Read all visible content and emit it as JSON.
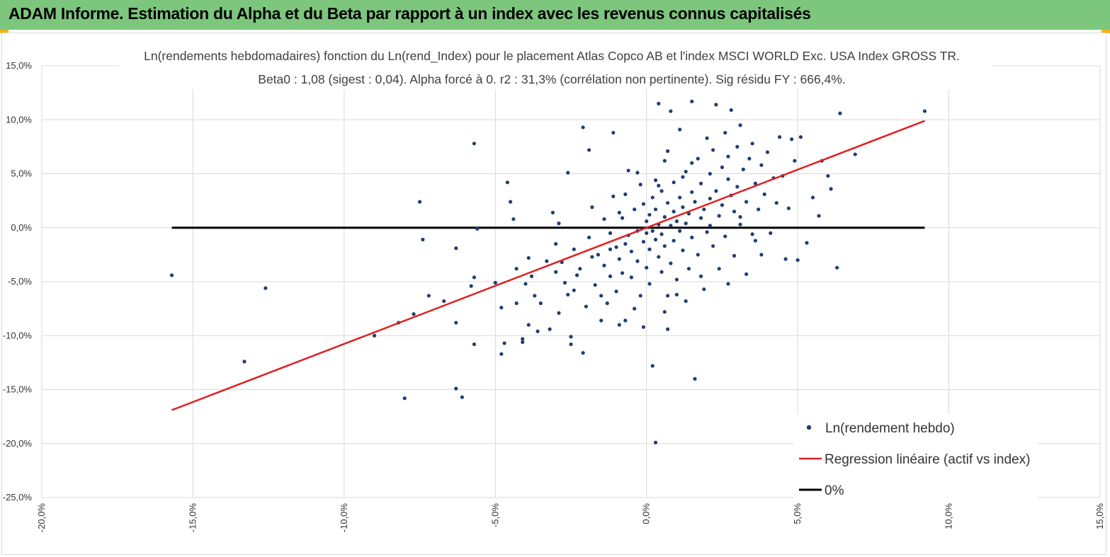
{
  "banner": {
    "title": "ADAM Informe. Estimation du Alpha et du Beta par rapport à un index avec les revenus connus capitalisés"
  },
  "colors": {
    "banner_bg": "#7dc67d",
    "accent_corner": "#f2b418",
    "points": "#1f3f73",
    "regression": "#e02020",
    "zero_line": "#000000",
    "grid": "#d9d9d9"
  },
  "chart_data": {
    "type": "scatter",
    "title_line1": "Ln(rendements hebdomadaires) fonction du Ln(rend_Index) pour le placement Atlas Copco AB et l'index MSCI WORLD Exc. USA Index GROSS TR.",
    "title_line2": "Beta0 : 1,08 (sigest : 0,04). Alpha forcé à 0. r2 : 31,3% (corrélation non pertinente). Sig résidu FY : 666,4%.",
    "xlabel": "",
    "ylabel": "",
    "xlim": [
      -0.2,
      0.15
    ],
    "ylim": [
      -0.25,
      0.15
    ],
    "x_ticks": [
      "-20,0%",
      "-15,0%",
      "-10,0%",
      "-5,0%",
      "0,0%",
      "5,0%",
      "10,0%",
      "15,0%"
    ],
    "y_ticks": [
      "15,0%",
      "10,0%",
      "5,0%",
      "0,0%",
      "-5,0%",
      "-10,0%",
      "-15,0%",
      "-20,0%",
      "-25,0%"
    ],
    "grid": "vertical and horizontal",
    "legend_position": "bottom-right",
    "series": [
      {
        "name": "Ln(rendement hebdo)",
        "kind": "scatter",
        "points": [
          [
            -0.157,
            -0.044
          ],
          [
            -0.133,
            -0.124
          ],
          [
            -0.126,
            -0.056
          ],
          [
            -0.09,
            -0.1
          ],
          [
            -0.082,
            -0.088
          ],
          [
            -0.08,
            -0.158
          ],
          [
            -0.077,
            -0.08
          ],
          [
            -0.075,
            0.024
          ],
          [
            -0.074,
            -0.011
          ],
          [
            -0.072,
            -0.063
          ],
          [
            -0.067,
            -0.068
          ],
          [
            -0.063,
            -0.088
          ],
          [
            -0.063,
            -0.019
          ],
          [
            -0.063,
            -0.149
          ],
          [
            -0.061,
            -0.157
          ],
          [
            -0.057,
            0.078
          ],
          [
            -0.058,
            -0.054
          ],
          [
            -0.057,
            -0.046
          ],
          [
            -0.057,
            -0.108
          ],
          [
            -0.056,
            -0.001
          ],
          [
            -0.05,
            -0.051
          ],
          [
            -0.048,
            -0.074
          ],
          [
            -0.047,
            -0.107
          ],
          [
            -0.048,
            -0.117
          ],
          [
            -0.046,
            0.042
          ],
          [
            -0.045,
            0.024
          ],
          [
            -0.044,
            0.008
          ],
          [
            -0.043,
            -0.038
          ],
          [
            -0.043,
            -0.07
          ],
          [
            -0.041,
            -0.103
          ],
          [
            -0.041,
            -0.106
          ],
          [
            -0.04,
            -0.052
          ],
          [
            -0.039,
            -0.09
          ],
          [
            -0.039,
            -0.028
          ],
          [
            -0.038,
            -0.045
          ],
          [
            -0.037,
            -0.063
          ],
          [
            -0.036,
            -0.096
          ],
          [
            -0.035,
            -0.07
          ],
          [
            -0.033,
            -0.031
          ],
          [
            -0.032,
            -0.094
          ],
          [
            -0.031,
            0.014
          ],
          [
            -0.03,
            -0.015
          ],
          [
            -0.029,
            -0.079
          ],
          [
            -0.029,
            0.004
          ],
          [
            -0.028,
            -0.032
          ],
          [
            -0.027,
            -0.051
          ],
          [
            -0.026,
            -0.062
          ],
          [
            -0.026,
            0.051
          ],
          [
            -0.025,
            -0.108
          ],
          [
            -0.025,
            -0.101
          ],
          [
            -0.024,
            -0.02
          ],
          [
            -0.023,
            -0.044
          ],
          [
            -0.022,
            -0.038
          ],
          [
            -0.021,
            -0.116
          ],
          [
            -0.021,
            0.093
          ],
          [
            -0.02,
            -0.073
          ],
          [
            -0.019,
            -0.009
          ],
          [
            -0.019,
            0.072
          ],
          [
            -0.018,
            0.019
          ],
          [
            -0.017,
            -0.053
          ],
          [
            -0.016,
            -0.025
          ],
          [
            -0.015,
            -0.086
          ],
          [
            -0.015,
            -0.063
          ],
          [
            -0.014,
            -0.035
          ],
          [
            -0.014,
            0.008
          ],
          [
            -0.013,
            -0.07
          ],
          [
            -0.012,
            -0.045
          ],
          [
            -0.012,
            -0.005
          ],
          [
            -0.011,
            0.088
          ],
          [
            -0.011,
            0.029
          ],
          [
            -0.01,
            -0.018
          ],
          [
            -0.01,
            -0.059
          ],
          [
            -0.009,
            -0.029
          ],
          [
            -0.009,
            -0.09
          ],
          [
            -0.008,
            0.009
          ],
          [
            -0.008,
            -0.042
          ],
          [
            -0.007,
            -0.015
          ],
          [
            -0.007,
            -0.086
          ],
          [
            -0.006,
            0.053
          ],
          [
            -0.006,
            -0.007
          ],
          [
            -0.005,
            -0.022
          ],
          [
            -0.005,
            -0.046
          ],
          [
            -0.004,
            -0.075
          ],
          [
            -0.004,
            0.017
          ],
          [
            -0.003,
            -0.003
          ],
          [
            -0.003,
            -0.031
          ],
          [
            -0.002,
            0.04
          ],
          [
            -0.002,
            -0.063
          ],
          [
            -0.001,
            -0.013
          ],
          [
            -0.001,
            0.022
          ],
          [
            -0.001,
            -0.092
          ],
          [
            0.0,
            -0.005
          ],
          [
            0.0,
            0.006
          ],
          [
            0.0,
            -0.037
          ],
          [
            0.001,
            0.012
          ],
          [
            0.001,
            -0.02
          ],
          [
            0.001,
            -0.052
          ],
          [
            0.002,
            0.028
          ],
          [
            0.002,
            -0.003
          ],
          [
            0.002,
            -0.128
          ],
          [
            0.003,
            0.044
          ],
          [
            0.003,
            -0.011
          ],
          [
            0.003,
            -0.199
          ],
          [
            0.003,
            0.017
          ],
          [
            0.004,
            -0.027
          ],
          [
            0.004,
            0.003
          ],
          [
            0.004,
            0.115
          ],
          [
            0.005,
            -0.041
          ],
          [
            0.005,
            0.034
          ],
          [
            0.005,
            -0.006
          ],
          [
            0.006,
            0.01
          ],
          [
            0.006,
            -0.017
          ],
          [
            0.006,
            0.062
          ],
          [
            0.007,
            -0.063
          ],
          [
            0.007,
            0.023
          ],
          [
            0.007,
            -0.094
          ],
          [
            0.008,
            0.002
          ],
          [
            0.008,
            0.108
          ],
          [
            0.008,
            -0.033
          ],
          [
            0.009,
            0.015
          ],
          [
            0.009,
            0.042
          ],
          [
            0.009,
            -0.012
          ],
          [
            0.01,
            0.006
          ],
          [
            0.01,
            -0.048
          ],
          [
            0.011,
            0.028
          ],
          [
            0.011,
            -0.003
          ],
          [
            0.011,
            0.091
          ],
          [
            0.012,
            0.019
          ],
          [
            0.012,
            -0.021
          ],
          [
            0.013,
            0.052
          ],
          [
            0.013,
            0.004
          ],
          [
            0.013,
            -0.068
          ],
          [
            0.014,
            0.013
          ],
          [
            0.014,
            -0.038
          ],
          [
            0.015,
            0.033
          ],
          [
            0.015,
            0.117
          ],
          [
            0.015,
            -0.009
          ],
          [
            0.016,
            -0.14
          ],
          [
            0.016,
            0.024
          ],
          [
            0.017,
            0.064
          ],
          [
            0.017,
            -0.025
          ],
          [
            0.018,
            0.009
          ],
          [
            0.018,
            0.041
          ],
          [
            0.019,
            -0.057
          ],
          [
            0.019,
            0.017
          ],
          [
            0.02,
            0.083
          ],
          [
            0.02,
            -0.004
          ],
          [
            0.021,
            0.05
          ],
          [
            0.021,
            0.027
          ],
          [
            0.022,
            -0.017
          ],
          [
            0.022,
            0.072
          ],
          [
            0.023,
            0.034
          ],
          [
            0.023,
            0.114
          ],
          [
            0.024,
            0.011
          ],
          [
            0.024,
            -0.038
          ],
          [
            0.025,
            0.056
          ],
          [
            0.025,
            0.021
          ],
          [
            0.026,
            0.088
          ],
          [
            0.026,
            -0.008
          ],
          [
            0.027,
            0.045
          ],
          [
            0.027,
            0.066
          ],
          [
            0.028,
            0.03
          ],
          [
            0.028,
            0.109
          ],
          [
            0.029,
            -0.026
          ],
          [
            0.029,
            0.015
          ],
          [
            0.03,
            0.075
          ],
          [
            0.03,
            0.038
          ],
          [
            0.031,
            0.095
          ],
          [
            0.031,
            0.003
          ],
          [
            0.032,
            0.054
          ],
          [
            0.033,
            -0.043
          ],
          [
            0.033,
            0.024
          ],
          [
            0.034,
            0.064
          ],
          [
            0.035,
            0.078
          ],
          [
            0.035,
            -0.006
          ],
          [
            0.036,
            0.041
          ],
          [
            0.037,
            0.017
          ],
          [
            0.038,
            -0.025
          ],
          [
            0.038,
            0.058
          ],
          [
            0.039,
            0.031
          ],
          [
            0.04,
            0.07
          ],
          [
            0.041,
            -0.005
          ],
          [
            0.042,
            0.046
          ],
          [
            0.043,
            0.023
          ],
          [
            0.044,
            0.084
          ],
          [
            0.045,
            0.048
          ],
          [
            0.046,
            -0.029
          ],
          [
            0.047,
            0.018
          ],
          [
            0.048,
            0.082
          ],
          [
            0.049,
            0.062
          ],
          [
            0.05,
            -0.03
          ],
          [
            0.051,
            0.084
          ],
          [
            0.053,
            -0.014
          ],
          [
            0.055,
            0.028
          ],
          [
            0.057,
            0.011
          ],
          [
            0.058,
            0.062
          ],
          [
            0.06,
            0.048
          ],
          [
            0.061,
            0.036
          ],
          [
            0.063,
            -0.037
          ],
          [
            0.064,
            0.106
          ],
          [
            0.069,
            0.068
          ],
          [
            0.092,
            0.108
          ],
          [
            -0.003,
            0.051
          ],
          [
            0.004,
            0.039
          ],
          [
            0.012,
            0.047
          ],
          [
            -0.007,
            0.031
          ],
          [
            0.018,
            -0.045
          ],
          [
            0.027,
            -0.052
          ],
          [
            -0.018,
            -0.027
          ],
          [
            0.006,
            -0.078
          ],
          [
            0.01,
            -0.062
          ],
          [
            -0.012,
            -0.02
          ],
          [
            0.021,
            0.002
          ],
          [
            0.015,
            0.06
          ],
          [
            -0.024,
            -0.058
          ],
          [
            0.031,
            0.01
          ],
          [
            0.036,
            -0.012
          ],
          [
            -0.03,
            -0.041
          ],
          [
            0.007,
            0.071
          ],
          [
            -0.009,
            0.014
          ]
        ]
      },
      {
        "name": "Regression linéaire (actif vs index)",
        "kind": "line",
        "points": [
          [
            -0.157,
            -0.169
          ],
          [
            0.092,
            0.099
          ]
        ]
      },
      {
        "name": "0%",
        "kind": "line",
        "points": [
          [
            -0.157,
            0.0
          ],
          [
            0.092,
            0.0
          ]
        ]
      }
    ]
  }
}
